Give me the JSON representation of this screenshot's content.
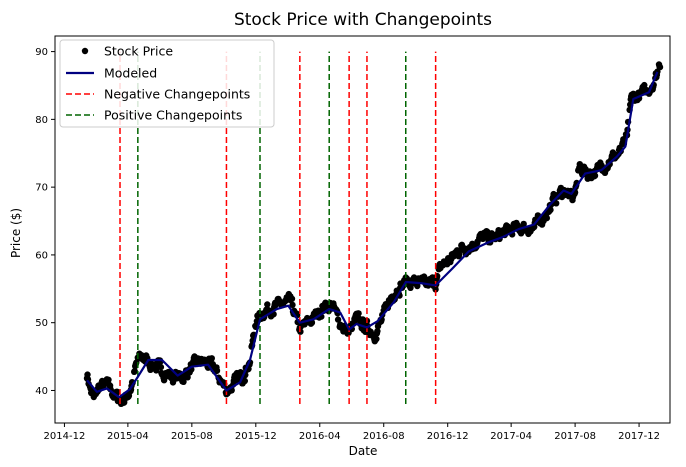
{
  "chart_data": {
    "type": "line",
    "title": "Stock Price with Changepoints",
    "xlabel": "Date",
    "ylabel": "Price ($)",
    "x_ticks": [
      "2014-12",
      "2015-04",
      "2015-08",
      "2015-12",
      "2016-04",
      "2016-08",
      "2016-12",
      "2017-04",
      "2017-08",
      "2017-12"
    ],
    "x_range": [
      "2014-11-13",
      "2018-01-29"
    ],
    "y_ticks": [
      40,
      50,
      60,
      70,
      80,
      90
    ],
    "ylim": [
      35.2,
      92.3
    ],
    "grid": false,
    "legend_position": "top-left",
    "legend": [
      "Stock Price",
      "Modeled",
      "Negative Changepoints",
      "Positive Changepoints"
    ],
    "colors": {
      "stock_price": "#000000",
      "modeled": "#000080",
      "negative_changepoint": "#ff0000",
      "positive_changepoint": "#006400"
    },
    "changepoint_y_range": [
      38.0,
      90.0
    ],
    "changepoints": {
      "negative": [
        "2015-03-17",
        "2015-10-06",
        "2016-02-23",
        "2016-05-27",
        "2016-06-30",
        "2016-11-08"
      ],
      "positive": [
        "2015-04-20",
        "2015-12-09",
        "2016-04-19",
        "2016-09-12"
      ]
    },
    "modeled": {
      "x": [
        "2015-01-13",
        "2015-02-01",
        "2015-02-20",
        "2015-03-15",
        "2015-04-05",
        "2015-04-20",
        "2015-05-10",
        "2015-06-05",
        "2015-07-05",
        "2015-08-01",
        "2015-09-01",
        "2015-10-06",
        "2015-11-01",
        "2015-11-20",
        "2015-12-09",
        "2016-01-10",
        "2016-02-01",
        "2016-02-23",
        "2016-03-20",
        "2016-04-19",
        "2016-05-10",
        "2016-05-27",
        "2016-06-10",
        "2016-06-30",
        "2016-07-20",
        "2016-08-20",
        "2016-09-12",
        "2016-10-15",
        "2016-11-08",
        "2016-12-10",
        "2017-01-10",
        "2017-02-15",
        "2017-03-15",
        "2017-04-15",
        "2017-05-15",
        "2017-06-15",
        "2017-07-10",
        "2017-07-25",
        "2017-08-20",
        "2017-09-20",
        "2017-10-20",
        "2017-11-05",
        "2017-11-20",
        "2017-12-20",
        "2018-01-05"
      ],
      "y": [
        41.5,
        39.8,
        40.3,
        39.0,
        40.2,
        42.0,
        44.5,
        44.5,
        42.2,
        43.5,
        43.8,
        40.0,
        41.2,
        44.5,
        50.5,
        52.0,
        52.5,
        50.0,
        50.5,
        52.0,
        51.5,
        49.0,
        49.8,
        49.3,
        50.2,
        53.0,
        56.0,
        55.8,
        55.5,
        58.0,
        60.5,
        61.8,
        62.6,
        63.8,
        64.5,
        67.5,
        69.5,
        69.0,
        72.0,
        72.5,
        74.5,
        76.0,
        83.0,
        84.0,
        87.0
      ]
    },
    "stock_price_anchors": {
      "x": [
        "2015-01-13",
        "2015-01-25",
        "2015-02-05",
        "2015-02-20",
        "2015-03-05",
        "2015-03-17",
        "2015-03-28",
        "2015-04-05",
        "2015-04-20",
        "2015-05-01",
        "2015-05-15",
        "2015-06-05",
        "2015-06-25",
        "2015-07-15",
        "2015-08-01",
        "2015-08-20",
        "2015-09-10",
        "2015-09-25",
        "2015-10-06",
        "2015-10-20",
        "2015-11-05",
        "2015-11-20",
        "2015-12-01",
        "2015-12-09",
        "2015-12-20",
        "2016-01-15",
        "2016-02-05",
        "2016-02-23",
        "2016-03-10",
        "2016-03-25",
        "2016-04-10",
        "2016-04-25",
        "2016-05-10",
        "2016-05-20",
        "2016-05-27",
        "2016-06-10",
        "2016-06-25",
        "2016-07-05",
        "2016-07-15",
        "2016-07-30",
        "2016-08-10",
        "2016-08-25",
        "2016-09-12",
        "2016-10-01",
        "2016-10-20",
        "2016-11-08",
        "2016-11-20",
        "2016-12-10",
        "2016-12-25",
        "2017-01-15",
        "2017-02-05",
        "2017-03-01",
        "2017-03-25",
        "2017-04-20",
        "2017-05-15",
        "2017-06-10",
        "2017-06-30",
        "2017-07-15",
        "2017-07-28",
        "2017-08-10",
        "2017-08-25",
        "2017-09-15",
        "2017-10-05",
        "2017-10-25",
        "2017-11-08",
        "2017-11-15",
        "2017-11-30",
        "2017-12-15",
        "2018-01-01",
        "2018-01-10"
      ],
      "y": [
        42.5,
        38.5,
        40.5,
        40.8,
        39.5,
        38.5,
        38.8,
        40.0,
        44.5,
        44.8,
        44.0,
        43.0,
        42.0,
        42.0,
        43.5,
        44.3,
        43.5,
        41.5,
        40.0,
        41.0,
        42.0,
        44.5,
        50.0,
        51.0,
        52.0,
        52.5,
        53.0,
        49.0,
        50.0,
        51.0,
        52.5,
        52.5,
        50.0,
        49.0,
        48.5,
        50.5,
        49.5,
        49.0,
        48.5,
        50.5,
        53.0,
        55.0,
        56.0,
        56.0,
        55.5,
        56.0,
        58.5,
        59.5,
        61.0,
        61.5,
        62.5,
        62.5,
        63.5,
        64.0,
        64.0,
        66.5,
        69.0,
        69.5,
        68.0,
        73.0,
        72.0,
        72.5,
        74.0,
        75.0,
        77.0,
        83.0,
        83.5,
        84.0,
        86.0,
        88.5
      ]
    }
  }
}
